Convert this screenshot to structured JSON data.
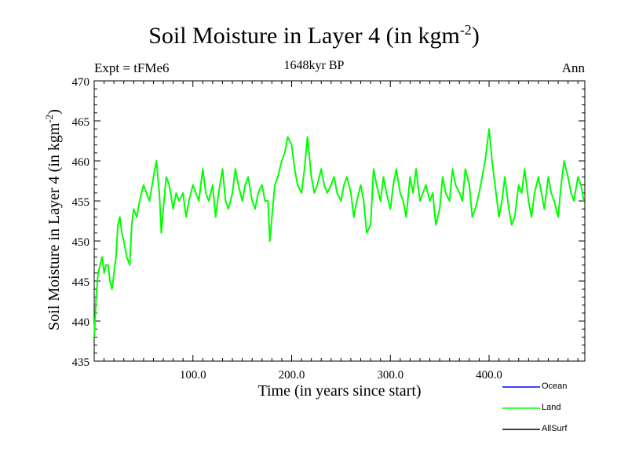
{
  "chart_data": {
    "type": "line",
    "title": "Soil Moisture in Layer 4 (in kgm",
    "title_sup": "-2",
    "title_end": ")",
    "subtitle": "1648kyr BP",
    "expt_label": "Expt = tFMe6",
    "season_label": "Ann",
    "xlabel": "Time (in years since start)",
    "ylabel": "Soil Moisture in Layer 4 (in kgm",
    "ylabel_sup": "-2",
    "ylabel_end": ")",
    "xlim": [
      0,
      497
    ],
    "ylim": [
      435,
      470
    ],
    "x_ticks": [
      100,
      200,
      300,
      400
    ],
    "x_tick_labels": [
      "100.0",
      "200.0",
      "300.0",
      "400.0"
    ],
    "y_ticks": [
      435,
      440,
      445,
      450,
      455,
      460,
      465,
      470
    ],
    "y_tick_labels": [
      "435",
      "440",
      "445",
      "450",
      "455",
      "460",
      "465",
      "470"
    ],
    "legend": [
      {
        "name": "Ocean",
        "color": "#0000ff"
      },
      {
        "name": "Land",
        "color": "#00ff00"
      },
      {
        "name": "AllSurf",
        "color": "#000000"
      }
    ],
    "series": [
      {
        "name": "Land",
        "color": "#00ff00",
        "x": [
          0,
          2,
          4,
          6,
          8,
          10,
          12,
          14,
          16,
          18,
          20,
          22,
          24,
          26,
          28,
          30,
          33,
          36,
          38,
          40,
          43,
          46,
          50,
          53,
          56,
          60,
          63,
          66,
          68,
          70,
          73,
          76,
          80,
          83,
          86,
          90,
          93,
          96,
          100,
          103,
          106,
          110,
          113,
          116,
          120,
          123,
          126,
          130,
          133,
          136,
          140,
          143,
          146,
          150,
          153,
          156,
          160,
          163,
          166,
          170,
          173,
          176,
          178,
          180,
          183,
          186,
          190,
          193,
          196,
          200,
          203,
          206,
          210,
          213,
          216,
          220,
          223,
          226,
          230,
          233,
          236,
          240,
          243,
          246,
          250,
          253,
          256,
          260,
          263,
          266,
          270,
          273,
          276,
          280,
          283,
          286,
          290,
          293,
          296,
          300,
          303,
          306,
          310,
          313,
          316,
          320,
          323,
          326,
          330,
          333,
          336,
          340,
          343,
          346,
          350,
          353,
          356,
          360,
          363,
          366,
          370,
          373,
          376,
          380,
          383,
          386,
          390,
          393,
          396,
          400,
          403,
          406,
          410,
          413,
          416,
          420,
          423,
          426,
          430,
          433,
          436,
          440,
          443,
          446,
          450,
          453,
          456,
          460,
          463,
          466,
          470,
          473,
          476,
          480,
          483,
          486,
          490,
          493,
          496
        ],
        "values": [
          438,
          443,
          446,
          447,
          448,
          446,
          447,
          447,
          445,
          444,
          446,
          448,
          452,
          453,
          451,
          450,
          448,
          447,
          452,
          454,
          453,
          455,
          457,
          456,
          455,
          458,
          460,
          456,
          451,
          454,
          458,
          457,
          454,
          456,
          455,
          456,
          453,
          455,
          457,
          456,
          455,
          459,
          456,
          455,
          457,
          453,
          456,
          459,
          455,
          454,
          456,
          459,
          457,
          455,
          457,
          458,
          455,
          454,
          456,
          457,
          455,
          455,
          450,
          453,
          457,
          458,
          460,
          461,
          463,
          462,
          459,
          457,
          456,
          459,
          463,
          458,
          456,
          457,
          459,
          457,
          456,
          457,
          458,
          456,
          455,
          457,
          458,
          456,
          453,
          455,
          457,
          455,
          451,
          452,
          459,
          457,
          455,
          458,
          456,
          454,
          457,
          459,
          456,
          455,
          453,
          458,
          456,
          459,
          455,
          456,
          457,
          455,
          456,
          452,
          454,
          458,
          456,
          455,
          459,
          457,
          456,
          455,
          459,
          457,
          453,
          454,
          456,
          458,
          460,
          464,
          460,
          457,
          453,
          455,
          458,
          454,
          452,
          453,
          457,
          456,
          459,
          455,
          453,
          456,
          458,
          456,
          454,
          458,
          456,
          455,
          453,
          457,
          460,
          458,
          456,
          455,
          458,
          457,
          455
        ]
      }
    ]
  }
}
